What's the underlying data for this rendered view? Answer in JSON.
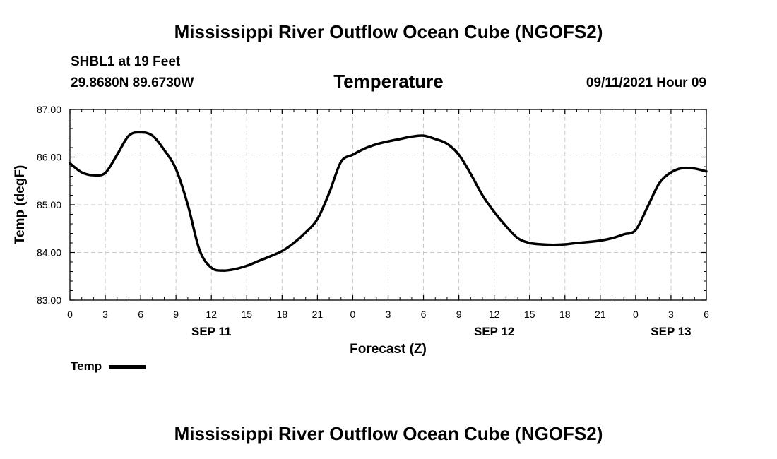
{
  "header": {
    "title": "Mississippi River Outflow Ocean Cube (NGOFS2)",
    "station": "SHBL1 at 19 Feet",
    "coordinates": "29.8680N  89.6730W",
    "variable": "Temperature",
    "datetime": "09/11/2021 Hour 09"
  },
  "footer": {
    "title": "Mississippi River Outflow Ocean Cube (NGOFS2)"
  },
  "legend": {
    "label": "Temp"
  },
  "colors": {
    "line": "#000000",
    "grid": "#c8c8c8"
  },
  "chart_data": {
    "type": "line",
    "title": "Temperature",
    "xlabel": "Forecast (Z)",
    "ylabel": "Temp (degF)",
    "x_unit": "hours from 09/11 00Z",
    "xlim": [
      0,
      54
    ],
    "ylim": [
      83.0,
      87.0
    ],
    "yticks": [
      83.0,
      84.0,
      85.0,
      86.0,
      87.0
    ],
    "ytick_labels": [
      "83.00",
      "84.00",
      "85.00",
      "86.00",
      "87.00"
    ],
    "xticks": [
      0,
      3,
      6,
      9,
      12,
      15,
      18,
      21,
      24,
      27,
      30,
      33,
      36,
      39,
      42,
      45,
      48,
      51,
      54
    ],
    "xtick_labels": [
      "0",
      "3",
      "6",
      "9",
      "12",
      "15",
      "18",
      "21",
      "0",
      "3",
      "6",
      "9",
      "12",
      "15",
      "18",
      "21",
      "0",
      "3",
      "6"
    ],
    "date_labels": [
      {
        "x": 12,
        "label": "SEP 11"
      },
      {
        "x": 36,
        "label": "SEP 12"
      },
      {
        "x": 51,
        "label": "SEP 13"
      }
    ],
    "grid": true,
    "series": [
      {
        "name": "Temp",
        "x": [
          0,
          1,
          2,
          3,
          4,
          5,
          6,
          7,
          8,
          9,
          10,
          11,
          12,
          13,
          14,
          15,
          16,
          17,
          18,
          19,
          20,
          21,
          22,
          23,
          24,
          25,
          26,
          27,
          28,
          29,
          30,
          31,
          32,
          33,
          34,
          35,
          36,
          37,
          38,
          39,
          40,
          41,
          42,
          43,
          44,
          45,
          46,
          47,
          48,
          49,
          50,
          51,
          52,
          53,
          54
        ],
        "values": [
          85.87,
          85.68,
          85.62,
          85.67,
          86.05,
          86.45,
          86.52,
          86.45,
          86.15,
          85.75,
          85.0,
          84.05,
          83.68,
          83.62,
          83.65,
          83.72,
          83.82,
          83.92,
          84.03,
          84.2,
          84.42,
          84.7,
          85.25,
          85.9,
          86.05,
          86.18,
          86.27,
          86.33,
          86.38,
          86.43,
          86.45,
          86.38,
          86.28,
          86.05,
          85.65,
          85.2,
          84.85,
          84.55,
          84.3,
          84.2,
          84.17,
          84.16,
          84.17,
          84.2,
          84.22,
          84.25,
          84.3,
          84.38,
          84.47,
          84.95,
          85.45,
          85.68,
          85.77,
          85.76,
          85.7
        ]
      }
    ]
  }
}
